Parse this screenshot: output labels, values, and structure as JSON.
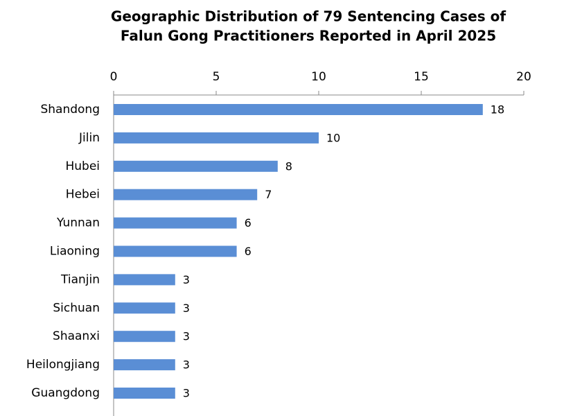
{
  "chart_data": {
    "type": "barh",
    "title": [
      "Geographic Distribution of 79 Sentencing Cases of",
      "Falun Gong Practitioners Reported in April 2025"
    ],
    "categories": [
      "Shandong",
      "Jilin",
      "Hubei",
      "Hebei",
      "Yunnan",
      "Liaoning",
      "Tianjin",
      "Sichuan",
      "Shaanxi",
      "Heilongjiang",
      "Guangdong"
    ],
    "values": [
      18,
      10,
      8,
      7,
      6,
      6,
      3,
      3,
      3,
      3,
      3
    ],
    "color": "#5a8ed5",
    "xlim": [
      0,
      20
    ],
    "xticks": [
      0,
      5,
      10,
      15,
      20
    ],
    "grid": false
  }
}
